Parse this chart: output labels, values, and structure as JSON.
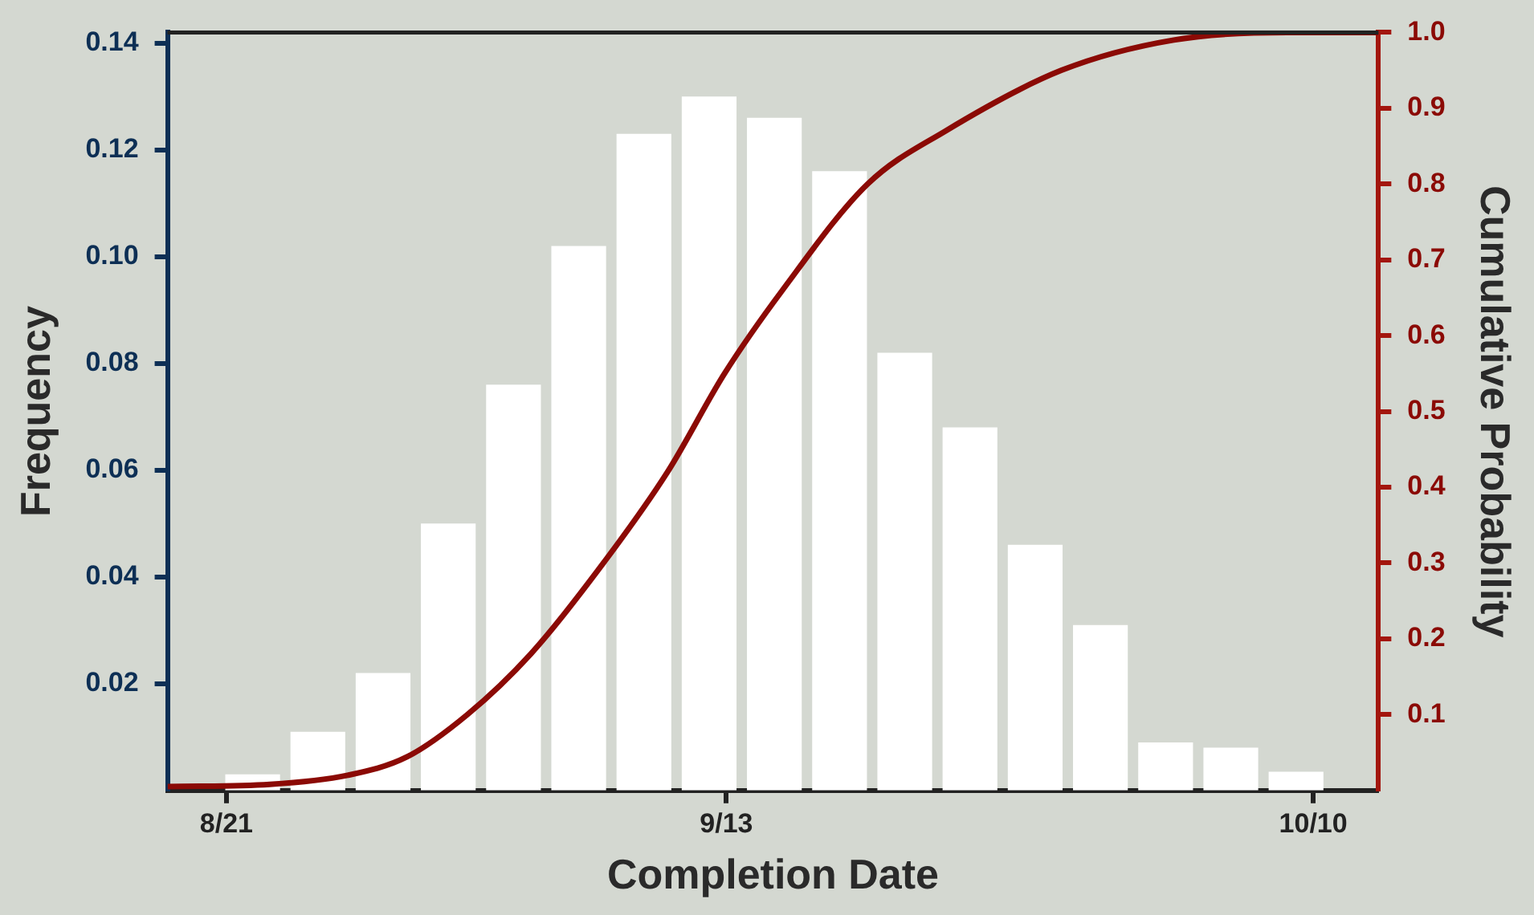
{
  "chart_data": {
    "type": "histogram",
    "xlabel": "Completion Date",
    "ylabel": "Frequency",
    "y2label": "Cumulative Probability",
    "xlim": [
      "--08-18T07:00",
      "--10-13"
    ],
    "xticks": [
      {
        "value": "--08-21",
        "label": "8/21"
      },
      {
        "value": "--09-13",
        "label": "9/13"
      },
      {
        "value": "--10-10",
        "label": "10/10"
      }
    ],
    "ylim": [
      0,
      0.142
    ],
    "yticks": [
      {
        "value": 0.02,
        "label": "0.02"
      },
      {
        "value": 0.04,
        "label": "0.04"
      },
      {
        "value": 0.06,
        "label": "0.06"
      },
      {
        "value": 0.08,
        "label": "0.08"
      },
      {
        "value": 0.1,
        "label": "0.10"
      },
      {
        "value": 0.12,
        "label": "0.12"
      },
      {
        "value": 0.14,
        "label": "0.14"
      }
    ],
    "y2lim": [
      0,
      1
    ],
    "y2ticks": [
      {
        "value": 0.1,
        "label": "0.1"
      },
      {
        "value": 0.2,
        "label": "0.2"
      },
      {
        "value": 0.3,
        "label": "0.3"
      },
      {
        "value": 0.4,
        "label": "0.4"
      },
      {
        "value": 0.5,
        "label": "0.5"
      },
      {
        "value": 0.6,
        "label": "0.6"
      },
      {
        "value": 0.7,
        "label": "0.7"
      },
      {
        "value": 0.8,
        "label": "0.8"
      },
      {
        "value": 0.9,
        "label": "0.9"
      },
      {
        "value": 1,
        "label": "1.0"
      }
    ],
    "grid": false,
    "legend": false,
    "series": [
      {
        "color": "#ffffff",
        "bins": [
          "--08-20T17:00",
          "--08-23T17:00",
          "--08-26T17:00",
          "--08-29T17:00",
          "--09-01T17:00",
          "--09-04T17:00",
          "--09-07T17:00",
          "--09-10T17:00",
          "--09-13T17:00",
          "--09-16T17:00",
          "--09-19T17:00",
          "--09-22T17:00",
          "--09-25T17:00",
          "--09-28T17:00",
          "--10-01T17:00",
          "--10-04T17:00",
          "--10-07T17:00",
          "--10-10T17:00"
        ],
        "values": [
          0.003,
          0.011,
          0.022,
          0.05,
          0.076,
          0.102,
          0.123,
          0.13,
          0.126,
          0.116,
          0.082,
          0.068,
          0.046,
          0.031,
          0.009,
          0.008,
          0.0035
        ]
      },
      {
        "type": "line",
        "axis": "y2",
        "color": "#8b0a05",
        "x": [
          "--08-18T07:00",
          "--08-23T00:00",
          "--08-26T14:00",
          "--08-29T07:00",
          "--09-01T02:00",
          "--09-04T00:00",
          "--09-07T02:00",
          "--09-10T07:00",
          "--09-12T22:00",
          "--09-15T14:00",
          "--09-19T12:00",
          "--09-23T02:00",
          "--09-28T10:00",
          "--10-03T14:00",
          "--10-08T19:00",
          "--10-13T00:00"
        ],
        "values": [
          0.005,
          0.008,
          0.02,
          0.044,
          0.1,
          0.18,
          0.29,
          0.42,
          0.55,
          0.66,
          0.8,
          0.87,
          0.95,
          0.99,
          1.0,
          1.0
        ]
      }
    ]
  }
}
